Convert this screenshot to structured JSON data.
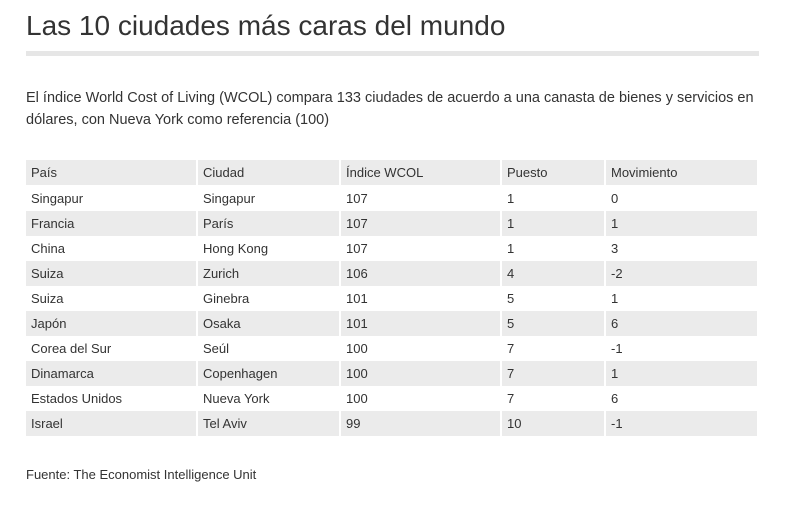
{
  "title": "Las 10 ciudades más caras del mundo",
  "intro": "El índice World Cost of Living (WCOL) compara 133 ciudades de acuerdo a una canasta de bienes y servicios en dólares, con Nueva York como referencia (100)",
  "source": "Fuente: The Economist Intelligence Unit",
  "chart_data": {
    "type": "table",
    "title": "Las 10 ciudades más caras del mundo",
    "columns": [
      "País",
      "Ciudad",
      "Índice WCOL",
      "Puesto",
      "Movimiento"
    ],
    "rows": [
      [
        "Singapur",
        "Singapur",
        "107",
        "1",
        "0"
      ],
      [
        "Francia",
        "París",
        "107",
        "1",
        "1"
      ],
      [
        "China",
        "Hong Kong",
        "107",
        "1",
        "3"
      ],
      [
        "Suiza",
        "Zurich",
        "106",
        "4",
        "-2"
      ],
      [
        "Suiza",
        "Ginebra",
        "101",
        "5",
        "1"
      ],
      [
        "Japón",
        "Osaka",
        "101",
        "5",
        "6"
      ],
      [
        "Corea del Sur",
        "Seúl",
        "100",
        "7",
        "-1"
      ],
      [
        "Dinamarca",
        "Copenhagen",
        "100",
        "7",
        "1"
      ],
      [
        "Estados Unidos",
        "Nueva York",
        "100",
        "7",
        "6"
      ],
      [
        "Israel",
        "Tel Aviv",
        "99",
        "10",
        "-1"
      ]
    ]
  }
}
